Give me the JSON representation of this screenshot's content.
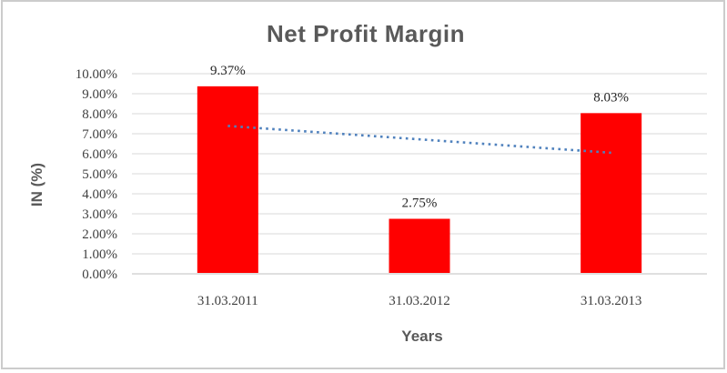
{
  "chart_data": {
    "type": "bar",
    "title": "Net Profit Margin",
    "xlabel": "Years",
    "ylabel": "IN (%)",
    "categories": [
      "31.03.2011",
      "31.03.2012",
      "31.03.2013"
    ],
    "series": [
      {
        "name": "Net Profit Margin",
        "values": [
          9.37,
          2.75,
          8.03
        ]
      }
    ],
    "data_labels": [
      "9.37%",
      "2.75%",
      "8.03%"
    ],
    "y_ticks": [
      "0.00%",
      "1.00%",
      "2.00%",
      "3.00%",
      "4.00%",
      "5.00%",
      "6.00%",
      "7.00%",
      "8.00%",
      "9.00%",
      "10.00%"
    ],
    "ylim": [
      0,
      10
    ],
    "y_tick_step": 1,
    "grid": true,
    "legend": "none",
    "trendline": {
      "type": "linear",
      "style": "dotted",
      "start_value": 7.39,
      "end_value": 6.05
    },
    "colors": {
      "bar": "#ff0000",
      "trendline": "#4f81bd",
      "gridline": "#d9d9d9",
      "axis_line": "#bfbfbf",
      "title": "#595959",
      "axis_title": "#595959",
      "tick_label": "#404040",
      "frame_border": "#cccccc"
    }
  }
}
